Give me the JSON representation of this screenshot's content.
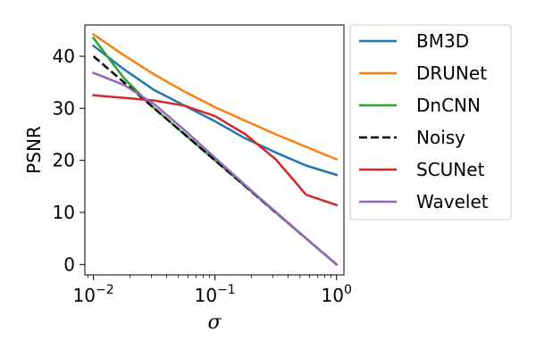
{
  "chart_data": {
    "type": "line",
    "title": "",
    "xlabel": "σ",
    "ylabel": "PSNR",
    "xscale": "log",
    "xlim": [
      0.0085,
      1.15
    ],
    "ylim": [
      -2,
      46
    ],
    "x_ticks": [
      {
        "base": "10",
        "exp": "−2",
        "value": 0.01
      },
      {
        "base": "10",
        "exp": "−1",
        "value": 0.1
      },
      {
        "base": "10",
        "exp": "0",
        "value": 1
      }
    ],
    "y_ticks": [
      {
        "label": "0",
        "value": 0
      },
      {
        "label": "10",
        "value": 10
      },
      {
        "label": "20",
        "value": 20
      },
      {
        "label": "30",
        "value": 30
      },
      {
        "label": "40",
        "value": 40
      }
    ],
    "grid": false,
    "legend_position": "outside-right",
    "series": [
      {
        "name": "BM3D",
        "color": "#1f77b4",
        "dash": "solid",
        "x": [
          0.01,
          0.0178,
          0.0316,
          0.0562,
          0.1,
          0.178,
          0.316,
          0.562,
          1.0
        ],
        "y": [
          42.0,
          37.5,
          33.5,
          30.5,
          27.5,
          24.2,
          21.5,
          19.0,
          17.2
        ]
      },
      {
        "name": "DRUNet",
        "color": "#ff7f0e",
        "dash": "solid",
        "x": [
          0.01,
          0.0178,
          0.0316,
          0.0562,
          0.1,
          0.178,
          0.316,
          0.562,
          1.0
        ],
        "y": [
          44.2,
          40.2,
          36.5,
          33.2,
          30.2,
          27.6,
          25.0,
          22.6,
          20.2
        ]
      },
      {
        "name": "DnCNN",
        "color": "#2ca02c",
        "dash": "solid",
        "x": [
          0.01,
          0.0178,
          0.0316,
          0.0562,
          0.1,
          0.178,
          0.316,
          0.562,
          1.0
        ],
        "y": [
          43.5,
          35.8,
          30.0,
          25.0,
          20.0,
          15.0,
          10.0,
          5.0,
          0.0
        ]
      },
      {
        "name": "Noisy",
        "color": "#000000",
        "dash": "dashed",
        "x": [
          0.01,
          0.0178,
          0.0316,
          0.0562,
          0.1,
          0.178,
          0.316,
          0.562,
          1.0
        ],
        "y": [
          40.0,
          35.0,
          30.0,
          25.0,
          20.0,
          15.0,
          10.0,
          5.0,
          0.0
        ]
      },
      {
        "name": "SCUNet",
        "color": "#d62728",
        "dash": "solid",
        "x": [
          0.01,
          0.0178,
          0.0316,
          0.0562,
          0.1,
          0.178,
          0.316,
          0.562,
          1.0
        ],
        "y": [
          32.5,
          32.0,
          31.5,
          30.5,
          28.5,
          25.0,
          20.2,
          13.4,
          11.4
        ]
      },
      {
        "name": "Wavelet",
        "color": "#9467bd",
        "dash": "solid",
        "x": [
          0.01,
          0.0178,
          0.0316,
          0.0562,
          0.1,
          0.178,
          0.316,
          0.562,
          1.0
        ],
        "y": [
          36.8,
          34.5,
          30.8,
          25.8,
          20.5,
          15.2,
          10.1,
          5.0,
          0.0
        ]
      }
    ]
  }
}
